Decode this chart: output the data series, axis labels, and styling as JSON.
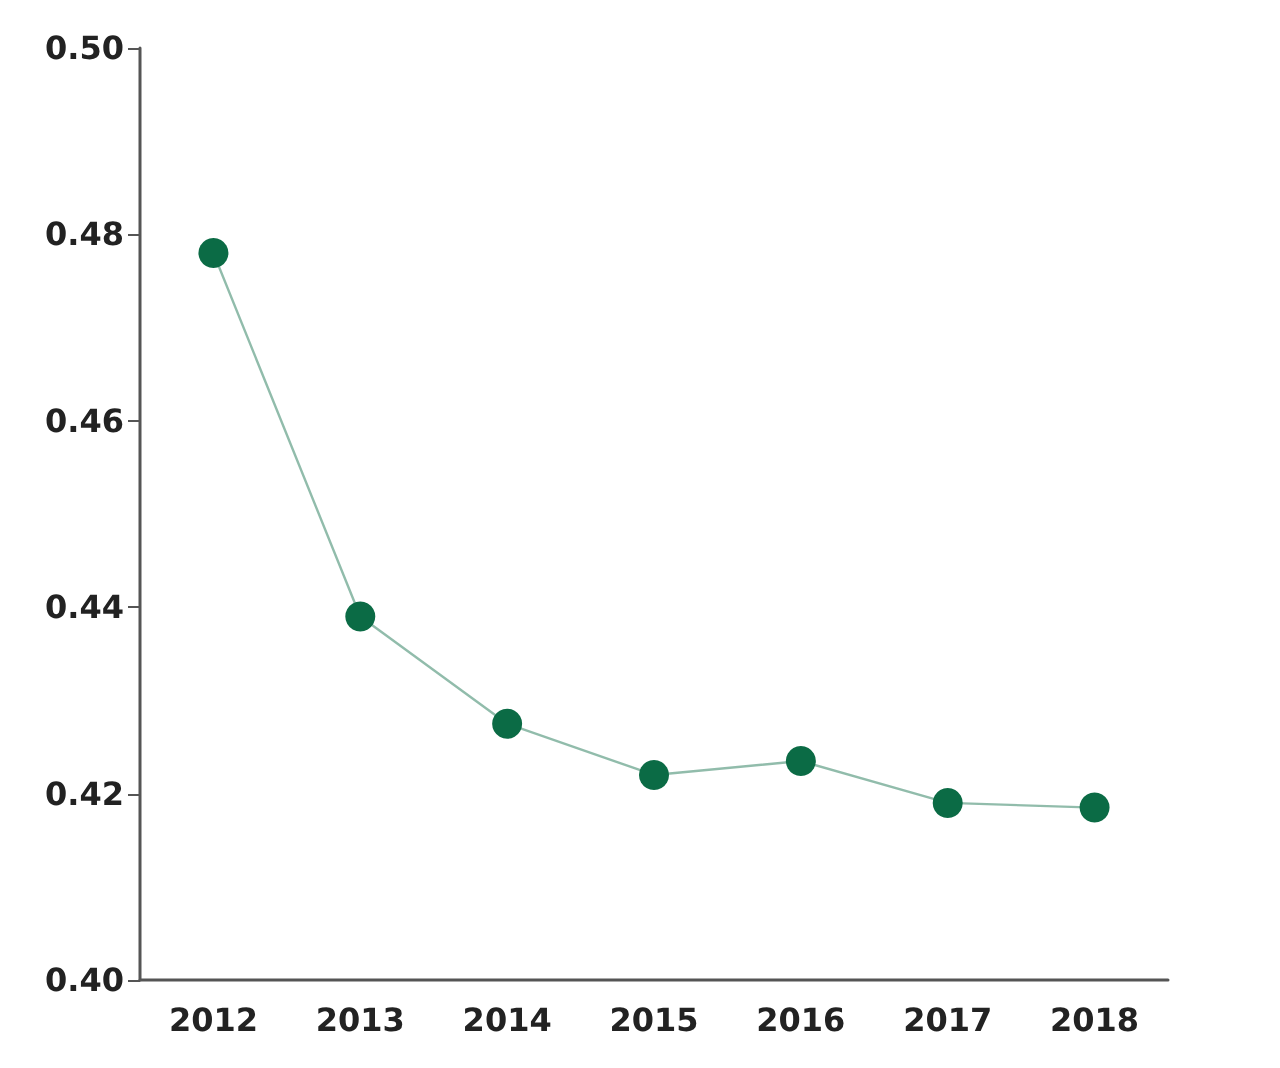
{
  "chart_data": {
    "type": "line",
    "categories": [
      "2012",
      "2013",
      "2014",
      "2015",
      "2016",
      "2017",
      "2018"
    ],
    "series": [
      {
        "color": "#0b6b45",
        "values": [
          0.478,
          0.439,
          0.4275,
          0.422,
          0.4235,
          0.419,
          0.4185
        ]
      }
    ],
    "ylim": [
      0.4,
      0.5
    ],
    "yticks": [
      {
        "value": 0.4,
        "label": "0.40"
      },
      0.42,
      0.44,
      0.46,
      0.48,
      {
        "value": 0.5,
        "label": "0.50"
      }
    ],
    "grid": false,
    "marker": "circle",
    "line_style": "solid"
  }
}
